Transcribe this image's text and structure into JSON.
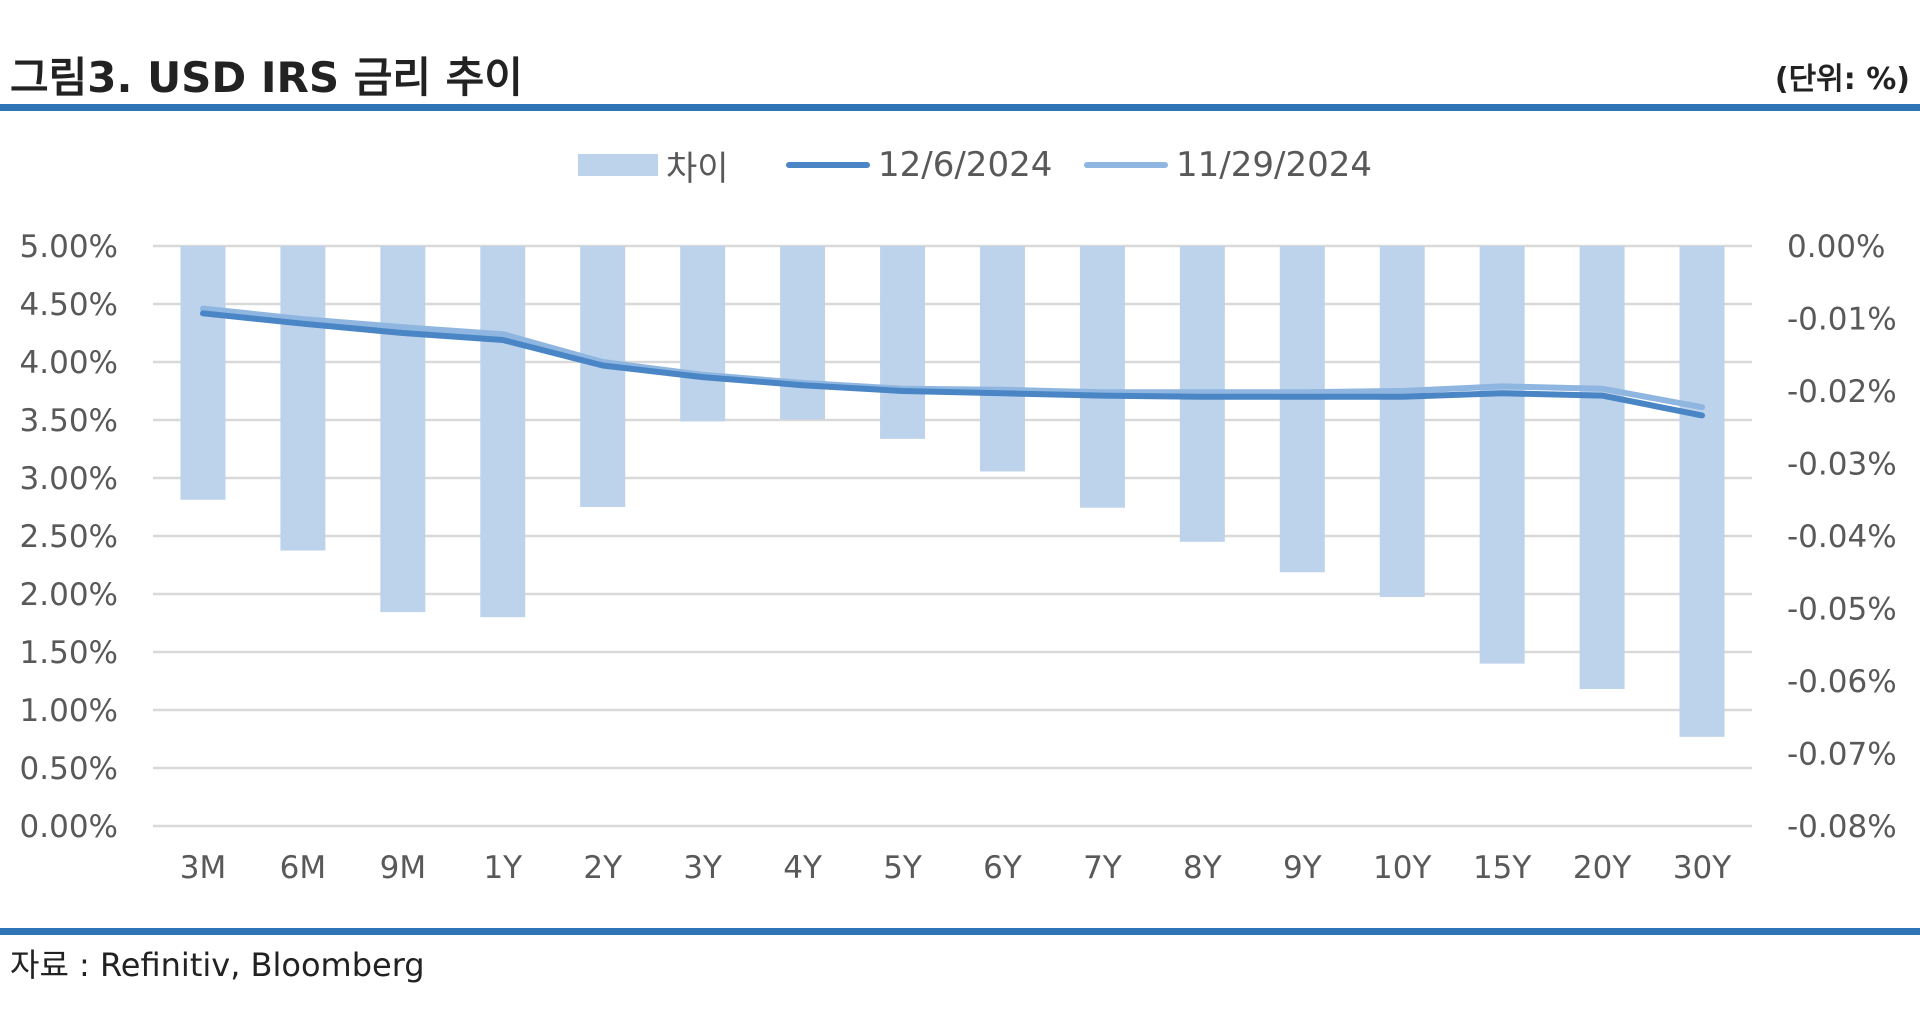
{
  "header": {
    "title": "그림3. USD IRS 금리 추이",
    "unit": "(단위: %)"
  },
  "footer": {
    "source": "자료 : Refinitiv, Bloomberg"
  },
  "colors": {
    "bar": "#bdd2eb",
    "line_1206": "#4a86c5",
    "line_1129": "#8fb6e1",
    "rule": "#2e75b6",
    "grid": "#d9d9d9"
  },
  "legend": [
    {
      "label": "차이",
      "type": "bar"
    },
    {
      "label": "12/6/2024",
      "type": "line"
    },
    {
      "label": "11/29/2024",
      "type": "line"
    }
  ],
  "chart_data": {
    "type": "bar+line",
    "categories": [
      "3M",
      "6M",
      "9M",
      "1Y",
      "2Y",
      "3Y",
      "4Y",
      "5Y",
      "6Y",
      "7Y",
      "8Y",
      "9Y",
      "10Y",
      "15Y",
      "20Y",
      "30Y"
    ],
    "y_left": {
      "ylim": [
        0,
        5
      ],
      "ticks": [
        "0.00%",
        "0.50%",
        "1.00%",
        "1.50%",
        "2.00%",
        "2.50%",
        "3.00%",
        "3.50%",
        "4.00%",
        "4.50%",
        "5.00%"
      ]
    },
    "y_right": {
      "ylim": [
        -0.08,
        0
      ],
      "ticks": [
        "-0.08%",
        "-0.07%",
        "-0.06%",
        "-0.05%",
        "-0.04%",
        "-0.03%",
        "-0.02%",
        "-0.01%",
        "0.00%"
      ]
    },
    "series": [
      {
        "name": "차이",
        "kind": "bar",
        "axis": "right",
        "values": [
          -0.035,
          -0.042,
          -0.0505,
          -0.0512,
          -0.036,
          -0.0242,
          -0.0239,
          -0.0266,
          -0.0311,
          -0.0361,
          -0.0408,
          -0.045,
          -0.0484,
          -0.0576,
          -0.0611,
          -0.0677
        ]
      },
      {
        "name": "12/6/2024",
        "kind": "line",
        "axis": "left",
        "values": [
          4.42,
          4.33,
          4.25,
          4.19,
          3.97,
          3.87,
          3.8,
          3.75,
          3.73,
          3.71,
          3.7,
          3.7,
          3.7,
          3.73,
          3.71,
          3.54
        ]
      },
      {
        "name": "11/29/2024",
        "kind": "line",
        "axis": "left",
        "values": [
          4.46,
          4.37,
          4.3,
          4.24,
          4.0,
          3.89,
          3.82,
          3.77,
          3.76,
          3.74,
          3.74,
          3.74,
          3.75,
          3.79,
          3.77,
          3.61
        ]
      }
    ],
    "grid": true,
    "legend_position": "top"
  }
}
